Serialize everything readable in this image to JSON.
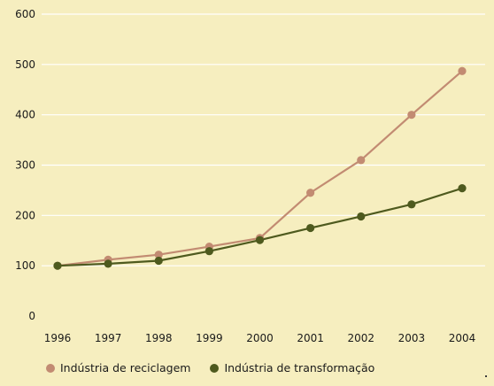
{
  "chart_data": {
    "type": "line",
    "x": [
      "1996",
      "1997",
      "1998",
      "1999",
      "2000",
      "2001",
      "2002",
      "2003",
      "2004"
    ],
    "series": [
      {
        "name": "Indústria de reciclagem",
        "color": "#c28b72",
        "values": [
          100,
          112,
          122,
          138,
          155,
          245,
          310,
          400,
          487
        ]
      },
      {
        "name": "Indústria de transformação",
        "color": "#4e5a1e",
        "values": [
          100,
          104,
          110,
          129,
          151,
          175,
          198,
          222,
          254
        ]
      }
    ],
    "yticks": [
      "0",
      "100",
      "200",
      "300",
      "400",
      "500",
      "600"
    ],
    "ylim": [
      0,
      600
    ],
    "grid": true,
    "legend_position": "bottom",
    "gridline_color": "#ffffff"
  }
}
